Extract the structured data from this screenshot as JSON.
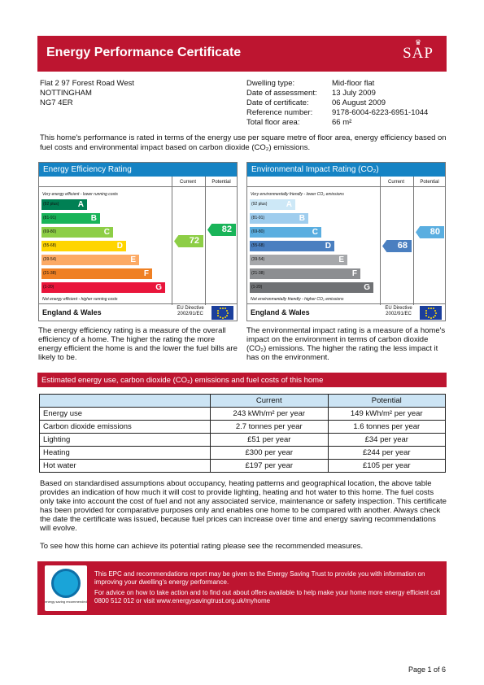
{
  "header": {
    "title": "Energy Performance Certificate",
    "logo_text": "SAP"
  },
  "address": [
    "Flat 2 97 Forest Road West",
    "NOTTINGHAM",
    "NG7 4ER"
  ],
  "details": [
    {
      "label": "Dwelling type:",
      "value": "Mid-floor flat"
    },
    {
      "label": "Date of assessment:",
      "value": "13 July 2009"
    },
    {
      "label": "Date of certificate:",
      "value": "06 August 2009"
    },
    {
      "label": "Reference number:",
      "value": "9178-6004-6223-6951-1044"
    },
    {
      "label": "Total floor area:",
      "value": "66 m²"
    }
  ],
  "intro": "This home's performance is rated in terms of the energy use per square metre of floor area, energy efficiency based on fuel costs and environmental impact based on carbon dioxide (CO₂) emissions.",
  "eer": {
    "title": "Energy Efficiency Rating",
    "current_label": "Current",
    "potential_label": "Potential",
    "top_note": "Very energy efficient - lower running costs",
    "bottom_note": "Not energy efficient - higher running costs",
    "bands": [
      {
        "range": "(92 plus)",
        "letter": "A",
        "color": "#008054"
      },
      {
        "range": "(81-91)",
        "letter": "B",
        "color": "#19b459"
      },
      {
        "range": "(69-80)",
        "letter": "C",
        "color": "#8dce46"
      },
      {
        "range": "(55-68)",
        "letter": "D",
        "color": "#ffd500"
      },
      {
        "range": "(39-54)",
        "letter": "E",
        "color": "#fcaa65"
      },
      {
        "range": "(21-38)",
        "letter": "F",
        "color": "#ef8023"
      },
      {
        "range": "(1-20)",
        "letter": "G",
        "color": "#e9153b"
      }
    ],
    "current": {
      "value": "72",
      "color": "#8dce46"
    },
    "potential": {
      "value": "82",
      "color": "#19b459"
    },
    "region": "England & Wales",
    "directive": "EU Directive 2002/91/EC",
    "description": "The energy efficiency rating is a measure of the overall efficiency of a home. The higher the rating the more energy efficient the home is and the lower the fuel bills are likely to be."
  },
  "eir": {
    "title": "Environmental Impact Rating (CO₂)",
    "current_label": "Current",
    "potential_label": "Potential",
    "top_note": "Very environmentally friendly - lower CO₂ emissions",
    "bottom_note": "Not environmentally friendly - higher CO₂ emissions",
    "bands": [
      {
        "range": "(92 plus)",
        "letter": "A",
        "color": "#cde8f7"
      },
      {
        "range": "(81-91)",
        "letter": "B",
        "color": "#9fcdee"
      },
      {
        "range": "(69-80)",
        "letter": "C",
        "color": "#5aaee0"
      },
      {
        "range": "(55-68)",
        "letter": "D",
        "color": "#4a7fc0"
      },
      {
        "range": "(39-54)",
        "letter": "E",
        "color": "#a6a8ab"
      },
      {
        "range": "(21-38)",
        "letter": "F",
        "color": "#8c8e91"
      },
      {
        "range": "(1-20)",
        "letter": "G",
        "color": "#6f7174"
      }
    ],
    "current": {
      "value": "68",
      "color": "#4a7fc0"
    },
    "potential": {
      "value": "80",
      "color": "#5aaee0"
    },
    "region": "England & Wales",
    "directive": "EU Directive 2002/91/EC",
    "description": "The environmental impact rating is a measure of a home's impact on the environment in terms of carbon dioxide (CO₂) emissions. The higher the rating the less impact it has on the environment."
  },
  "costs": {
    "title": "Estimated energy use, carbon dioxide (CO₂) emissions and fuel costs of this home",
    "headers": [
      "",
      "Current",
      "Potential"
    ],
    "rows": [
      [
        "Energy use",
        "243 kWh/m² per year",
        "149 kWh/m² per year"
      ],
      [
        "Carbon dioxide emissions",
        "2.7 tonnes per year",
        "1.6 tonnes per year"
      ],
      [
        "Lighting",
        "£51 per year",
        "£34 per year"
      ],
      [
        "Heating",
        "£300 per year",
        "£244 per year"
      ],
      [
        "Hot water",
        "£197 per year",
        "£105 per year"
      ]
    ]
  },
  "assumptions": "Based on standardised assumptions about occupancy, heating patterns and geographical location, the above table provides an indication of how much it will cost to provide lighting, heating and hot water to this home. The fuel costs only take into account the cost of fuel and not any associated service, maintenance or safety inspection. This certificate has been provided for comparative purposes only and enables one home to be compared with another. Always check the date the certificate was issued, because fuel prices can increase over time and energy saving recommendations will evolve.",
  "see_more": "To see how this home can achieve its potential rating please see the recommended measures.",
  "est": {
    "logo_text": "energy saving recommended",
    "line1": "This EPC and recommendations report may be given to the Energy Saving Trust to provide you with information on improving your dwelling's energy performance.",
    "line2": "For advice on how to take action and to find out about offers available to help make your home more energy efficient call 0800 512 012 or visit www.energysavingtrust.org.uk/myhome"
  },
  "page": "Page 1 of 6"
}
